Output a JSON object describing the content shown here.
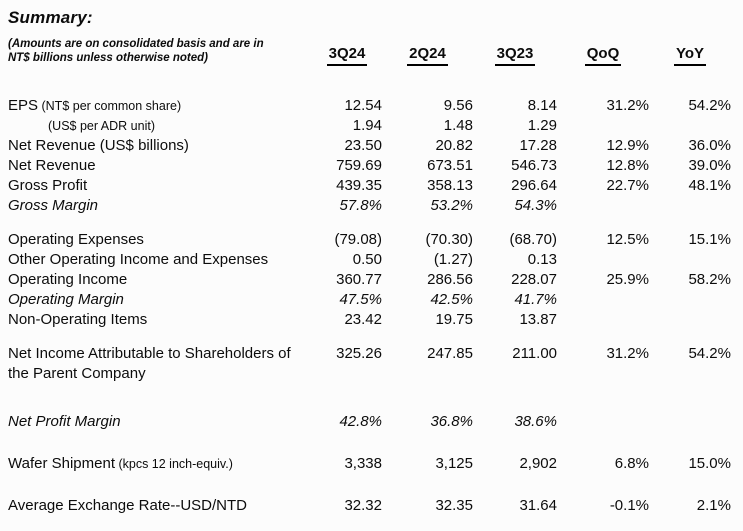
{
  "title": "Summary:",
  "note": {
    "line1": "(Amounts are on consolidated basis and are in",
    "line2": "NT$ billions unless otherwise noted)"
  },
  "columns": [
    "3Q24",
    "2Q24",
    "3Q23",
    "QoQ",
    "YoY"
  ],
  "rows": [
    {
      "label": "EPS",
      "label_small": "(NT$ per common share)",
      "values": [
        "12.54",
        "9.56",
        "8.14",
        "31.2%",
        "54.2%"
      ]
    },
    {
      "label": "",
      "label_small": "(US$ per ADR unit)",
      "indent": true,
      "values": [
        "1.94",
        "1.48",
        "1.29",
        "",
        ""
      ]
    },
    {
      "label": "Net Revenue (US$ billions)",
      "values": [
        "23.50",
        "20.82",
        "17.28",
        "12.9%",
        "36.0%"
      ]
    },
    {
      "label": "Net Revenue",
      "values": [
        "759.69",
        "673.51",
        "546.73",
        "12.8%",
        "39.0%"
      ]
    },
    {
      "label": "Gross Profit",
      "values": [
        "439.35",
        "358.13",
        "296.64",
        "22.7%",
        "48.1%"
      ]
    },
    {
      "label": "Gross Margin",
      "italic": true,
      "values": [
        "57.8%",
        "53.2%",
        "54.3%",
        "",
        ""
      ]
    },
    {
      "type": "gap",
      "size": "s"
    },
    {
      "label": "Operating Expenses",
      "values": [
        "(79.08)",
        "(70.30)",
        "(68.70)",
        "12.5%",
        "15.1%"
      ]
    },
    {
      "label": "Other Operating Income and Expenses",
      "values": [
        "0.50",
        "(1.27)",
        "0.13",
        "",
        ""
      ]
    },
    {
      "label": "Operating Income",
      "values": [
        "360.77",
        "286.56",
        "228.07",
        "25.9%",
        "58.2%"
      ]
    },
    {
      "label": "Operating Margin",
      "italic": true,
      "values": [
        "47.5%",
        "42.5%",
        "41.7%",
        "",
        ""
      ]
    },
    {
      "label": "Non-Operating Items",
      "values": [
        "23.42",
        "19.75",
        "13.87",
        "",
        ""
      ]
    },
    {
      "type": "gap",
      "size": "s"
    },
    {
      "label": "Net Income Attributable to Shareholders of the Parent Company",
      "valign_top": true,
      "values": [
        "325.26",
        "247.85",
        "211.00",
        "31.2%",
        "54.2%"
      ]
    },
    {
      "type": "gap",
      "size": "l"
    },
    {
      "label": "Net Profit Margin",
      "italic": true,
      "values": [
        "42.8%",
        "36.8%",
        "38.6%",
        "",
        ""
      ]
    },
    {
      "type": "gap",
      "size": "m"
    },
    {
      "label": "Wafer Shipment",
      "label_small": "(kpcs 12 inch-equiv.)",
      "values": [
        "3,338",
        "3,125",
        "2,902",
        "6.8%",
        "15.0%"
      ]
    },
    {
      "type": "gap",
      "size": "m"
    },
    {
      "label": "Average Exchange Rate--USD/NTD",
      "values": [
        "32.32",
        "32.35",
        "31.64",
        "-0.1%",
        "2.1%"
      ]
    }
  ]
}
